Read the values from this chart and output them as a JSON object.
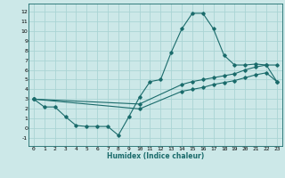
{
  "xlabel": "Humidex (Indice chaleur)",
  "xlim": [
    -0.5,
    23.5
  ],
  "ylim": [
    -1.8,
    12.8
  ],
  "xticks": [
    0,
    1,
    2,
    3,
    4,
    5,
    6,
    7,
    8,
    9,
    10,
    11,
    12,
    13,
    14,
    15,
    16,
    17,
    18,
    19,
    20,
    21,
    22,
    23
  ],
  "yticks": [
    -1,
    0,
    1,
    2,
    3,
    4,
    5,
    6,
    7,
    8,
    9,
    10,
    11,
    12
  ],
  "background_color": "#cce8e8",
  "grid_color": "#aad4d4",
  "line_color": "#1a6b6b",
  "line1_x": [
    0,
    1,
    2,
    3,
    4,
    5,
    6,
    7,
    8,
    9,
    10,
    11,
    12,
    13,
    14,
    15,
    16,
    17,
    18,
    19,
    20,
    21,
    22,
    23
  ],
  "line1_y": [
    3.0,
    2.2,
    2.2,
    1.2,
    0.3,
    0.2,
    0.2,
    0.2,
    -0.7,
    1.2,
    3.2,
    4.8,
    5.0,
    7.8,
    10.2,
    11.8,
    11.8,
    10.2,
    7.5,
    6.5,
    6.5,
    6.6,
    6.5,
    4.8
  ],
  "line2_x": [
    0,
    10,
    14,
    15,
    16,
    17,
    18,
    19,
    20,
    21,
    22,
    23
  ],
  "line2_y": [
    3.0,
    2.5,
    4.5,
    4.8,
    5.0,
    5.2,
    5.4,
    5.6,
    6.0,
    6.3,
    6.5,
    6.5
  ],
  "line3_x": [
    0,
    10,
    14,
    15,
    16,
    17,
    18,
    19,
    20,
    21,
    22,
    23
  ],
  "line3_y": [
    3.0,
    2.0,
    3.8,
    4.0,
    4.2,
    4.5,
    4.7,
    4.9,
    5.2,
    5.5,
    5.7,
    4.8
  ]
}
